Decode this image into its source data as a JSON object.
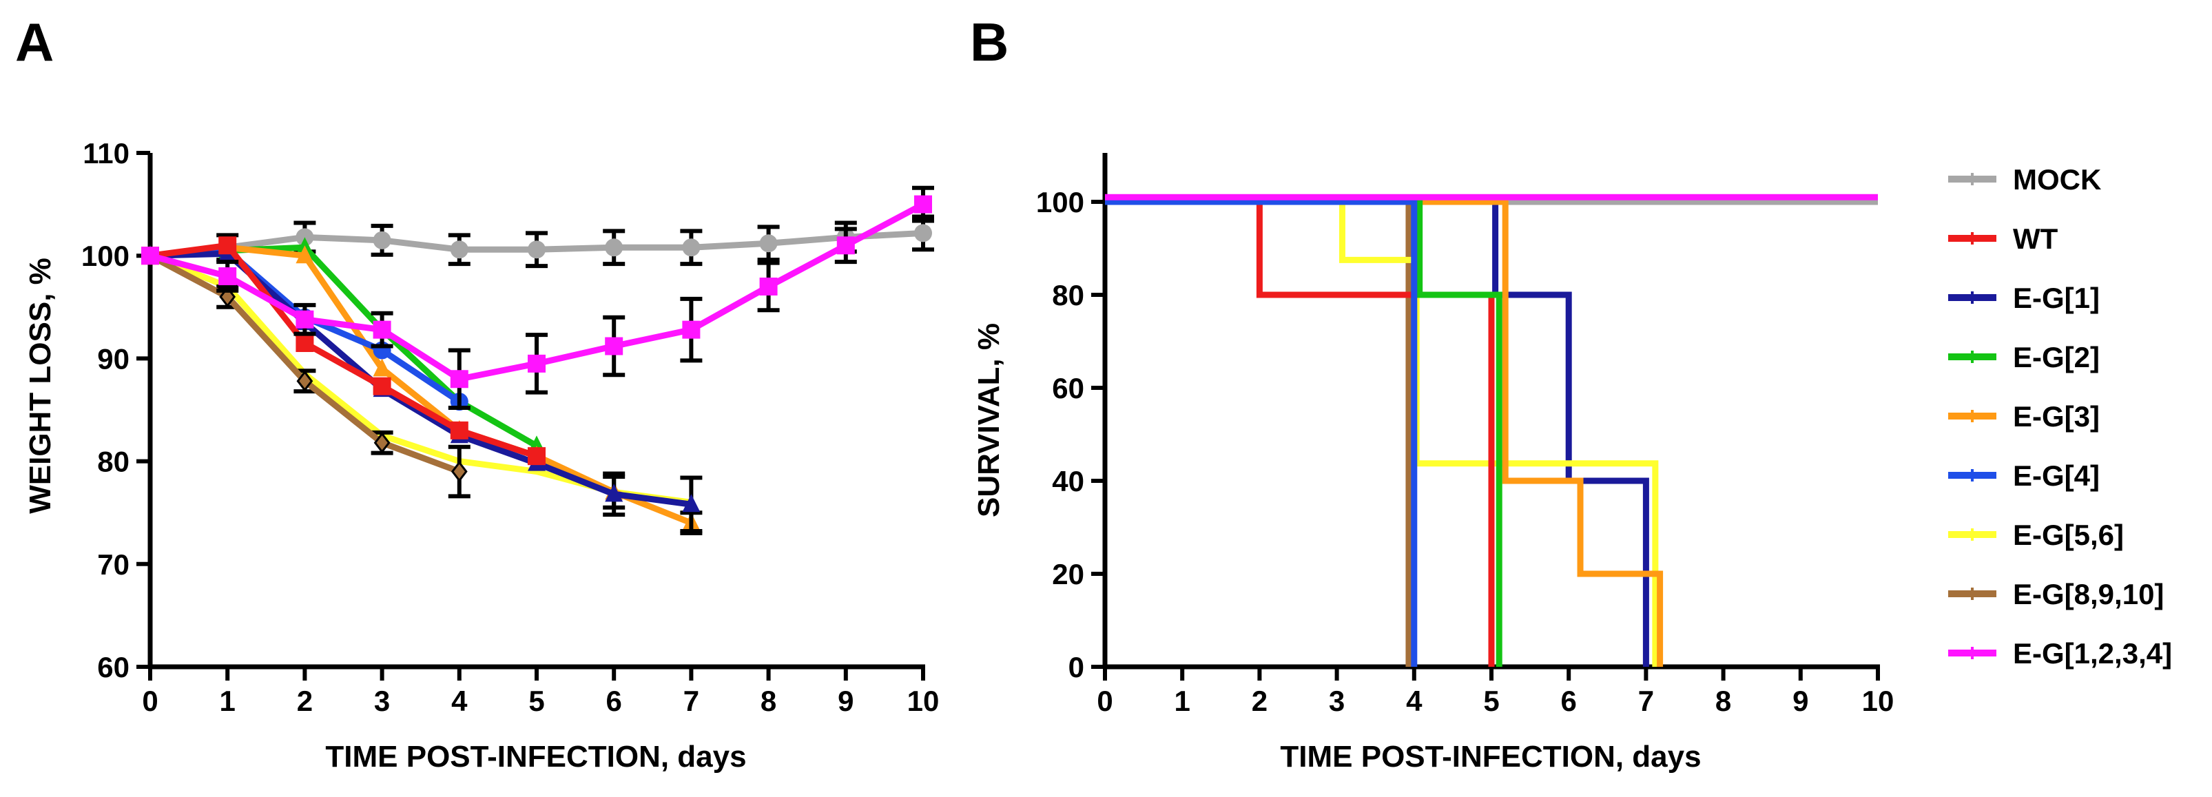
{
  "colors": {
    "MOCK": "#a6a6a6",
    "WT": "#ee1c1c",
    "E-G[1]": "#1a1a9a",
    "E-G[2]": "#14c414",
    "E-G[3]": "#ff9a14",
    "E-G[4]": "#1f4fe8",
    "E-G[5,6]": "#ffff2e",
    "E-G[8,9,10]": "#a5703a",
    "E-G[1,2,3,4]": "#ff14ff"
  },
  "legend": [
    "MOCK",
    "WT",
    "E-G[1]",
    "E-G[2]",
    "E-G[3]",
    "E-G[4]",
    "E-G[5,6]",
    "E-G[8,9,10]",
    "E-G[1,2,3,4]"
  ],
  "chart_data": [
    {
      "panel": "A",
      "type": "line",
      "xlabel": "TIME POST-INFECTION, days",
      "ylabel": "WEIGHT LOSS, %",
      "xlim": [
        0,
        10
      ],
      "ylim": [
        60,
        110
      ],
      "x_ticks": [
        "0",
        "1",
        "2",
        "3",
        "4",
        "5",
        "6",
        "7",
        "8",
        "9",
        "10"
      ],
      "y_ticks": [
        "60",
        "70",
        "80",
        "90",
        "100",
        "110"
      ],
      "series": [
        {
          "name": "MOCK",
          "x": [
            0,
            1,
            2,
            3,
            4,
            5,
            6,
            7,
            8,
            9,
            10
          ],
          "y": [
            100,
            100.8,
            101.8,
            101.5,
            100.6,
            100.6,
            100.8,
            100.8,
            101.2,
            101.8,
            102.2
          ],
          "err": [
            0,
            1.2,
            1.4,
            1.4,
            1.4,
            1.6,
            1.6,
            1.6,
            1.6,
            1.4,
            1.6
          ],
          "marker": "circle"
        },
        {
          "name": "E-G[5,6]",
          "x": [
            0,
            1,
            2,
            3,
            4,
            5,
            6,
            7
          ],
          "y": [
            100,
            97,
            88.5,
            82.5,
            80,
            79,
            77,
            76
          ],
          "err": [
            0,
            0,
            0,
            0,
            0,
            0,
            0,
            0
          ],
          "marker": "none"
        },
        {
          "name": "E-G[8,9,10]",
          "x": [
            0,
            1,
            2,
            3,
            4
          ],
          "y": [
            100,
            96,
            87.8,
            81.8,
            79
          ],
          "err": [
            0,
            1,
            1,
            1,
            2.4
          ],
          "marker": "diamond"
        },
        {
          "name": "E-G[2]",
          "x": [
            0,
            1,
            2,
            3,
            4,
            5
          ],
          "y": [
            100,
            100.5,
            100.8,
            92.8,
            85.8,
            81.5
          ],
          "err": [
            0,
            0,
            0,
            0,
            0,
            0
          ],
          "marker": "triangle"
        },
        {
          "name": "E-G[3]",
          "x": [
            0,
            1,
            2,
            3,
            4,
            5,
            6,
            7
          ],
          "y": [
            100,
            100.8,
            100,
            89,
            83,
            80.5,
            77,
            74
          ],
          "err": [
            0,
            0,
            0,
            0,
            0,
            0,
            1.5,
            1
          ],
          "marker": "triangle"
        },
        {
          "name": "E-G[4]",
          "x": [
            0,
            1,
            2,
            3,
            4
          ],
          "y": [
            100,
            100.5,
            94,
            90.8,
            85.8
          ],
          "err": [
            0,
            0,
            0,
            0,
            0
          ],
          "marker": "circle"
        },
        {
          "name": "E-G[1]",
          "x": [
            0,
            1,
            2,
            3,
            4,
            5,
            6,
            7
          ],
          "y": [
            100,
            100.2,
            93.5,
            87,
            82.5,
            79.8,
            76.8,
            75.8
          ],
          "err": [
            0,
            0,
            0,
            0,
            0,
            0,
            2,
            2.6
          ],
          "marker": "triangle"
        },
        {
          "name": "WT",
          "x": [
            0,
            1,
            2,
            3,
            4,
            5
          ],
          "y": [
            100,
            101,
            91.5,
            87.3,
            83,
            80.5
          ],
          "err": [
            0,
            0,
            0,
            0,
            0,
            0
          ],
          "marker": "square"
        },
        {
          "name": "E-G[1,2,3,4]",
          "x": [
            0,
            1,
            2,
            3,
            4,
            5,
            6,
            7,
            8,
            9,
            10
          ],
          "y": [
            100,
            98,
            93.8,
            92.8,
            88,
            89.5,
            91.2,
            92.8,
            97,
            101,
            105
          ],
          "err": [
            0,
            1.4,
            1.4,
            1.6,
            2.8,
            2.8,
            2.8,
            3,
            2.3,
            1.6,
            1.6
          ],
          "marker": "square"
        }
      ]
    },
    {
      "panel": "B",
      "type": "line",
      "xlabel": "TIME POST-INFECTION, days",
      "ylabel": "SURVIVAL, %",
      "xlim": [
        0,
        10
      ],
      "ylim": [
        0,
        100
      ],
      "x_ticks": [
        "0",
        "1",
        "2",
        "3",
        "4",
        "5",
        "6",
        "7",
        "8",
        "9",
        "10"
      ],
      "y_ticks": [
        "0",
        "20",
        "40",
        "60",
        "80",
        "100"
      ],
      "series": [
        {
          "name": "MOCK",
          "x": [
            0,
            10
          ],
          "y": [
            100,
            100
          ]
        },
        {
          "name": "E-G[8,9,10]",
          "x": [
            0,
            3.93,
            3.93
          ],
          "y": [
            100,
            100,
            0
          ]
        },
        {
          "name": "E-G[1]",
          "x": [
            0,
            5.05,
            5.05,
            6,
            6,
            7,
            7
          ],
          "y": [
            100,
            100,
            80,
            80,
            40,
            40,
            0
          ]
        },
        {
          "name": "E-G[5,6]",
          "x": [
            0,
            3.07,
            3.07,
            4.03,
            4.03,
            7.12,
            7.12
          ],
          "y": [
            100,
            100,
            87.5,
            87.5,
            43.75,
            43.75,
            0
          ]
        },
        {
          "name": "E-G[3]",
          "x": [
            0,
            5.18,
            5.18,
            6.15,
            6.15,
            7.18,
            7.18
          ],
          "y": [
            100,
            100,
            40,
            40,
            20,
            20,
            0
          ]
        },
        {
          "name": "WT",
          "x": [
            0,
            2,
            2,
            5,
            5
          ],
          "y": [
            100,
            100,
            80,
            80,
            0
          ]
        },
        {
          "name": "E-G[2]",
          "x": [
            0,
            4.07,
            4.07,
            5.1,
            5.1
          ],
          "y": [
            100,
            100,
            80,
            80,
            0
          ]
        },
        {
          "name": "E-G[4]",
          "x": [
            0,
            4,
            4
          ],
          "y": [
            100,
            100,
            0
          ]
        },
        {
          "name": "E-G[1,2,3,4]",
          "x": [
            0,
            10
          ],
          "y": [
            101,
            101
          ]
        }
      ]
    }
  ],
  "panel_letters": {
    "A": "A",
    "B": "B"
  }
}
